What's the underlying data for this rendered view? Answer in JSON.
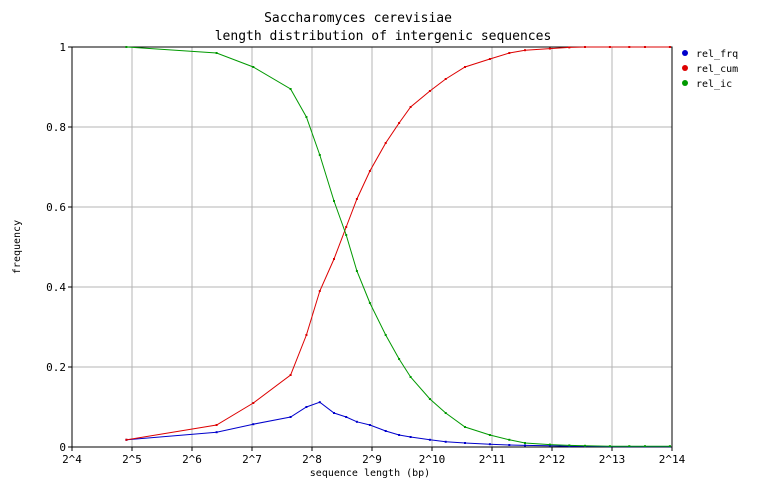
{
  "chart_data": {
    "type": "line",
    "title": "Saccharomyces cerevisiae",
    "subtitle": "length distribution of intergenic sequences",
    "xlabel": "sequence length (bp)",
    "ylabel": "frequency",
    "x_scale": "log2",
    "xlim": [
      16,
      16384
    ],
    "ylim": [
      0,
      1
    ],
    "grid": true,
    "legend_position": "top-right",
    "x_ticks": [
      "2^4",
      "2^5",
      "2^6",
      "2^7",
      "2^8",
      "2^9",
      "2^10",
      "2^11",
      "2^12",
      "2^13",
      "2^14"
    ],
    "y_ticks": [
      "0",
      "0.2",
      "0.4",
      "0.6",
      "0.8",
      "1"
    ],
    "series": [
      {
        "name": "rel_frq",
        "color": "#0000cc",
        "x": [
          30,
          85,
          130,
          200,
          240,
          280,
          330,
          380,
          430,
          500,
          600,
          700,
          800,
          1000,
          1200,
          1500,
          2000,
          2500,
          3000,
          4000,
          5000,
          6000,
          8000,
          10000,
          12000,
          16000
        ],
        "y": [
          0.018,
          0.037,
          0.057,
          0.075,
          0.1,
          0.112,
          0.085,
          0.075,
          0.063,
          0.055,
          0.04,
          0.03,
          0.025,
          0.018,
          0.013,
          0.01,
          0.007,
          0.005,
          0.004,
          0.003,
          0.002,
          0.002,
          0.001,
          0.001,
          0.001,
          0.001
        ]
      },
      {
        "name": "rel_cum",
        "color": "#dd0000",
        "x": [
          30,
          85,
          130,
          200,
          240,
          280,
          330,
          380,
          430,
          500,
          600,
          700,
          800,
          1000,
          1200,
          1500,
          2000,
          2500,
          3000,
          4000,
          5000,
          6000,
          8000,
          10000,
          12000,
          16000
        ],
        "y": [
          0.018,
          0.055,
          0.11,
          0.18,
          0.28,
          0.39,
          0.47,
          0.55,
          0.62,
          0.69,
          0.76,
          0.81,
          0.85,
          0.89,
          0.92,
          0.95,
          0.97,
          0.985,
          0.992,
          0.996,
          0.999,
          1.0,
          1.0,
          1.0,
          1.0,
          1.0
        ]
      },
      {
        "name": "rel_ic",
        "color": "#009900",
        "x": [
          30,
          85,
          130,
          200,
          240,
          280,
          330,
          380,
          430,
          500,
          600,
          700,
          800,
          1000,
          1200,
          1500,
          2000,
          2500,
          3000,
          4000,
          5000,
          6000,
          8000,
          10000,
          12000,
          16000
        ],
        "y": [
          1.0,
          0.985,
          0.95,
          0.895,
          0.825,
          0.73,
          0.615,
          0.53,
          0.44,
          0.36,
          0.28,
          0.22,
          0.175,
          0.12,
          0.085,
          0.05,
          0.03,
          0.018,
          0.01,
          0.006,
          0.004,
          0.003,
          0.002,
          0.002,
          0.002,
          0.002
        ]
      }
    ]
  }
}
